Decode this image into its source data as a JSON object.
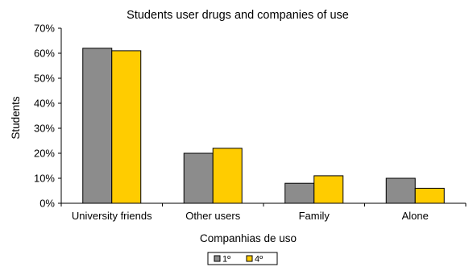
{
  "chart_data": {
    "type": "bar",
    "title": "Students user drugs and companies of use",
    "xlabel": "Companhias de uso",
    "ylabel": "Students",
    "categories": [
      "University friends",
      "Other users",
      "Family",
      "Alone"
    ],
    "series": [
      {
        "name": "1º",
        "values": [
          62,
          20,
          8,
          10
        ],
        "color": "#8c8c8c"
      },
      {
        "name": "4º",
        "values": [
          61,
          22,
          11,
          6
        ],
        "color": "#ffcc00"
      }
    ],
    "ylim": [
      0,
      70
    ],
    "yticks": [
      0,
      10,
      20,
      30,
      40,
      50,
      60,
      70
    ],
    "ytick_labels": [
      "0%",
      "10%",
      "20%",
      "30%",
      "40%",
      "50%",
      "60%",
      "70%"
    ],
    "grid": false,
    "legend_position": "bottom"
  }
}
